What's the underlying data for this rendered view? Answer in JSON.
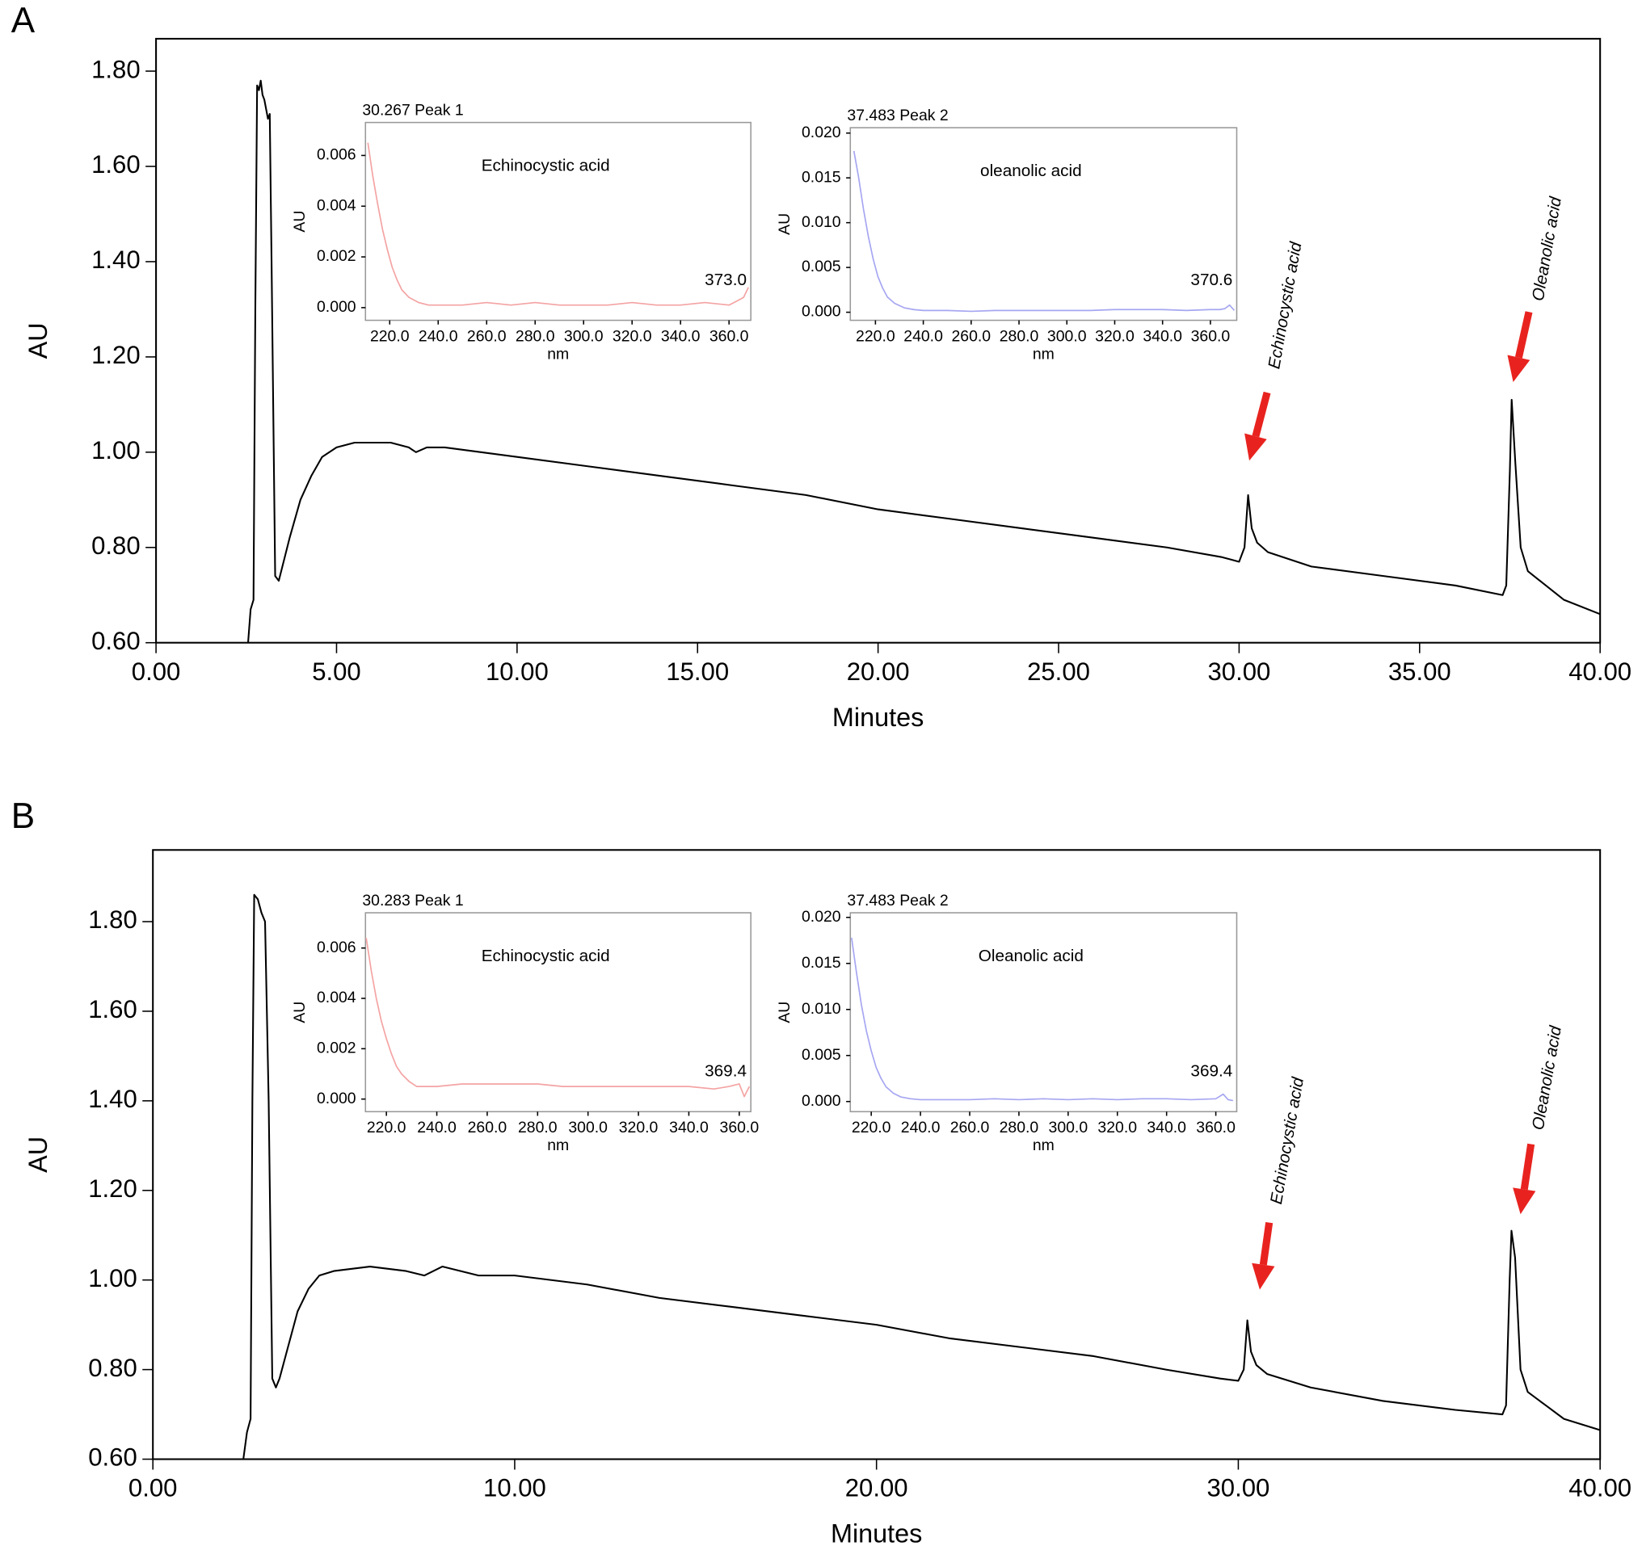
{
  "chart_data": [
    {
      "type": "line",
      "panel_label": "A",
      "xlabel": "Minutes",
      "ylabel": "AU",
      "color": "#000000",
      "xlim": [
        0,
        40
      ],
      "ylim": [
        0.6,
        1.868
      ],
      "xticks": [
        {
          "value": 0,
          "label": "0.00"
        },
        {
          "value": 5,
          "label": "5.00"
        },
        {
          "value": 10,
          "label": "10.00"
        },
        {
          "value": 15,
          "label": "15.00"
        },
        {
          "value": 20,
          "label": "20.00"
        },
        {
          "value": 25,
          "label": "25.00"
        },
        {
          "value": 30,
          "label": "30.00"
        },
        {
          "value": 35,
          "label": "35.00"
        },
        {
          "value": 40,
          "label": "40.00"
        }
      ],
      "yticks": [
        {
          "value": 0.6,
          "label": "0.60"
        },
        {
          "value": 0.8,
          "label": "0.80"
        },
        {
          "value": 1.0,
          "label": "1.00"
        },
        {
          "value": 1.2,
          "label": "1.20"
        },
        {
          "value": 1.4,
          "label": "1.40"
        },
        {
          "value": 1.6,
          "label": "1.60"
        },
        {
          "value": 1.8,
          "label": "1.80"
        }
      ],
      "x": [
        2.55,
        2.62,
        2.7,
        2.75,
        2.8,
        2.85,
        2.9,
        2.95,
        3.0,
        3.05,
        3.1,
        3.15,
        3.2,
        3.3,
        3.4,
        3.5,
        3.7,
        4.0,
        4.3,
        4.6,
        5.0,
        5.5,
        6.0,
        6.5,
        7.0,
        7.2,
        7.5,
        8.0,
        9.0,
        10.0,
        12.0,
        14.0,
        16.0,
        18.0,
        20.0,
        22.0,
        24.0,
        26.0,
        28.0,
        29.5,
        30.0,
        30.15,
        30.25,
        30.35,
        30.5,
        30.8,
        32.0,
        34.0,
        36.0,
        37.3,
        37.4,
        37.5,
        37.55,
        37.65,
        37.8,
        38.0,
        38.5,
        39.0,
        40.0
      ],
      "values": [
        0.6,
        0.67,
        0.69,
        1.3,
        1.77,
        1.76,
        1.78,
        1.75,
        1.74,
        1.72,
        1.7,
        1.71,
        1.4,
        0.74,
        0.73,
        0.76,
        0.82,
        0.9,
        0.95,
        0.99,
        1.01,
        1.02,
        1.02,
        1.02,
        1.01,
        1.0,
        1.01,
        1.01,
        1.0,
        0.99,
        0.97,
        0.95,
        0.93,
        0.91,
        0.88,
        0.86,
        0.84,
        0.82,
        0.8,
        0.78,
        0.77,
        0.8,
        0.91,
        0.84,
        0.81,
        0.79,
        0.76,
        0.74,
        0.72,
        0.7,
        0.72,
        0.96,
        1.11,
        0.98,
        0.8,
        0.75,
        0.72,
        0.69,
        0.66
      ],
      "annotations": [
        "Echinocystic acid",
        "Oleanolic acid"
      ],
      "annotation_color": "#e8231f"
    },
    {
      "type": "inset",
      "title": "30.267 Peak 1",
      "label": "Echinocystic acid",
      "xlabel": "nm",
      "ylabel": "AU",
      "color": "#f4a3a3",
      "label_color": "#e85a5a",
      "peak_label": "373.0",
      "xlim": [
        210,
        369
      ],
      "ylim": [
        -0.0005,
        0.0073
      ],
      "xticks": [
        {
          "value": 220,
          "label": "220.0"
        },
        {
          "value": 240,
          "label": "240.0"
        },
        {
          "value": 260,
          "label": "260.0"
        },
        {
          "value": 280,
          "label": "280.0"
        },
        {
          "value": 300,
          "label": "300.0"
        },
        {
          "value": 320,
          "label": "320.0"
        },
        {
          "value": 340,
          "label": "340.0"
        },
        {
          "value": 360,
          "label": "360.0"
        }
      ],
      "yticks": [
        {
          "value": 0,
          "label": "0.000"
        },
        {
          "value": 0.002,
          "label": "0.002"
        },
        {
          "value": 0.004,
          "label": "0.004"
        },
        {
          "value": 0.006,
          "label": "0.006"
        }
      ],
      "x": [
        211,
        213,
        215,
        217,
        219,
        221,
        223,
        225,
        228,
        232,
        236,
        240,
        250,
        260,
        270,
        280,
        290,
        300,
        310,
        320,
        330,
        340,
        350,
        360,
        364,
        366,
        368
      ],
      "values": [
        0.0065,
        0.0052,
        0.0041,
        0.0031,
        0.0023,
        0.0016,
        0.0011,
        0.0007,
        0.0004,
        0.0002,
        0.0001,
        0.0001,
        0.0001,
        0.0002,
        0.0001,
        0.0002,
        0.0001,
        0.0001,
        0.0001,
        0.0002,
        0.0001,
        0.0001,
        0.0002,
        0.0001,
        0.0003,
        0.0004,
        0.0008
      ]
    },
    {
      "type": "inset",
      "title": "37.483 Peak 2",
      "label": "oleanolic acid",
      "xlabel": "nm",
      "ylabel": "AU",
      "color": "#a6a6f2",
      "label_color": "#8c8ce6",
      "peak_label": "370.6",
      "xlim": [
        209.5,
        371
      ],
      "ylim": [
        -0.0009,
        0.0206
      ],
      "xticks": [
        {
          "value": 220,
          "label": "220.0"
        },
        {
          "value": 240,
          "label": "240.0"
        },
        {
          "value": 260,
          "label": "260.0"
        },
        {
          "value": 280,
          "label": "280.0"
        },
        {
          "value": 300,
          "label": "300.0"
        },
        {
          "value": 320,
          "label": "320.0"
        },
        {
          "value": 340,
          "label": "340.0"
        },
        {
          "value": 360,
          "label": "360.0"
        }
      ],
      "yticks": [
        {
          "value": 0,
          "label": "0.000"
        },
        {
          "value": 0.005,
          "label": "0.005"
        },
        {
          "value": 0.01,
          "label": "0.010"
        },
        {
          "value": 0.015,
          "label": "0.015"
        },
        {
          "value": 0.02,
          "label": "0.020"
        }
      ],
      "x": [
        211,
        213,
        215,
        217,
        219,
        221,
        223,
        225,
        228,
        232,
        236,
        240,
        250,
        260,
        270,
        280,
        290,
        300,
        310,
        320,
        330,
        340,
        350,
        360,
        364,
        366,
        368,
        370
      ],
      "values": [
        0.018,
        0.015,
        0.0115,
        0.0085,
        0.006,
        0.004,
        0.0027,
        0.0017,
        0.001,
        0.0005,
        0.0003,
        0.0002,
        0.0002,
        0.0001,
        0.0002,
        0.0002,
        0.0002,
        0.0002,
        0.0002,
        0.0003,
        0.0003,
        0.0003,
        0.0002,
        0.0003,
        0.0003,
        0.0004,
        0.0008,
        0.0002
      ]
    },
    {
      "type": "line",
      "panel_label": "B",
      "xlabel": "Minutes",
      "ylabel": "AU",
      "color": "#000000",
      "xlim": [
        0,
        40
      ],
      "ylim": [
        0.6,
        1.96
      ],
      "xticks": [
        {
          "value": 0,
          "label": "0.00"
        },
        {
          "value": 10,
          "label": "10.00"
        },
        {
          "value": 20,
          "label": "20.00"
        },
        {
          "value": 30,
          "label": "30.00"
        },
        {
          "value": 40,
          "label": "40.00"
        }
      ],
      "yticks": [
        {
          "value": 0.6,
          "label": "0.60"
        },
        {
          "value": 0.8,
          "label": "0.80"
        },
        {
          "value": 1.0,
          "label": "1.00"
        },
        {
          "value": 1.2,
          "label": "1.20"
        },
        {
          "value": 1.4,
          "label": "1.40"
        },
        {
          "value": 1.6,
          "label": "1.60"
        },
        {
          "value": 1.8,
          "label": "1.80"
        }
      ],
      "x": [
        2.5,
        2.6,
        2.7,
        2.75,
        2.8,
        2.9,
        3.0,
        3.1,
        3.2,
        3.3,
        3.4,
        3.5,
        3.7,
        4.0,
        4.3,
        4.6,
        5.0,
        6.0,
        7.0,
        7.5,
        8.0,
        9.0,
        10.0,
        12.0,
        14.0,
        16.0,
        18.0,
        20.0,
        22.0,
        24.0,
        26.0,
        28.0,
        29.5,
        30.0,
        30.15,
        30.25,
        30.35,
        30.5,
        30.8,
        32.0,
        34.0,
        36.0,
        37.3,
        37.4,
        37.5,
        37.55,
        37.65,
        37.8,
        38.0,
        38.5,
        39.0,
        40.0
      ],
      "values": [
        0.6,
        0.66,
        0.69,
        1.4,
        1.86,
        1.85,
        1.82,
        1.8,
        1.4,
        0.78,
        0.76,
        0.78,
        0.84,
        0.93,
        0.98,
        1.01,
        1.02,
        1.03,
        1.02,
        1.01,
        1.03,
        1.01,
        1.01,
        0.99,
        0.96,
        0.94,
        0.92,
        0.9,
        0.87,
        0.85,
        0.83,
        0.8,
        0.78,
        0.775,
        0.8,
        0.91,
        0.84,
        0.81,
        0.79,
        0.76,
        0.73,
        0.71,
        0.7,
        0.72,
        1.0,
        1.11,
        1.05,
        0.8,
        0.75,
        0.72,
        0.69,
        0.665
      ],
      "annotations": [
        "Echinocystic acid",
        "Oleanolic acid"
      ],
      "annotation_color": "#e8231f"
    },
    {
      "type": "inset",
      "title": "30.283 Peak 1",
      "label": "Echinocystic acid",
      "xlabel": "nm",
      "ylabel": "AU",
      "color": "#f4a3a3",
      "label_color": "#e85a5a",
      "peak_label": "369.4",
      "xlim": [
        211.7,
        364.6
      ],
      "ylim": [
        -0.0005,
        0.0074
      ],
      "xticks": [
        {
          "value": 220,
          "label": "220.0"
        },
        {
          "value": 240,
          "label": "240.0"
        },
        {
          "value": 260,
          "label": "260.0"
        },
        {
          "value": 280,
          "label": "280.0"
        },
        {
          "value": 300,
          "label": "300.0"
        },
        {
          "value": 320,
          "label": "320.0"
        },
        {
          "value": 340,
          "label": "340.0"
        },
        {
          "value": 360,
          "label": "360.0"
        }
      ],
      "yticks": [
        {
          "value": 0,
          "label": "0.000"
        },
        {
          "value": 0.002,
          "label": "0.002"
        },
        {
          "value": 0.004,
          "label": "0.004"
        },
        {
          "value": 0.006,
          "label": "0.006"
        }
      ],
      "x": [
        212,
        214,
        216,
        218,
        220,
        222,
        224,
        226,
        229,
        232,
        236,
        240,
        250,
        260,
        270,
        280,
        290,
        300,
        310,
        320,
        330,
        340,
        350,
        356,
        360,
        362,
        364
      ],
      "values": [
        0.0064,
        0.0051,
        0.004,
        0.0031,
        0.0024,
        0.0018,
        0.0013,
        0.001,
        0.0007,
        0.0005,
        0.0005,
        0.0005,
        0.0006,
        0.0006,
        0.0006,
        0.0006,
        0.0005,
        0.0005,
        0.0005,
        0.0005,
        0.0005,
        0.0005,
        0.0004,
        0.0005,
        0.0006,
        0.0001,
        0.0005
      ]
    },
    {
      "type": "inset",
      "title": "37.483 Peak 2",
      "label": "Oleanolic acid",
      "xlabel": "nm",
      "ylabel": "AU",
      "color": "#a6a6f2",
      "label_color": "#8c8ce6",
      "peak_label": "369.4",
      "xlim": [
        211.5,
        368.5
      ],
      "ylim": [
        -0.0011,
        0.0205
      ],
      "xticks": [
        {
          "value": 220,
          "label": "220.0"
        },
        {
          "value": 240,
          "label": "240.0"
        },
        {
          "value": 260,
          "label": "260.0"
        },
        {
          "value": 280,
          "label": "280.0"
        },
        {
          "value": 300,
          "label": "300.0"
        },
        {
          "value": 320,
          "label": "320.0"
        },
        {
          "value": 340,
          "label": "340.0"
        },
        {
          "value": 360,
          "label": "360.0"
        }
      ],
      "yticks": [
        {
          "value": 0,
          "label": "0.000"
        },
        {
          "value": 0.005,
          "label": "0.005"
        },
        {
          "value": 0.01,
          "label": "0.010"
        },
        {
          "value": 0.015,
          "label": "0.015"
        },
        {
          "value": 0.02,
          "label": "0.020"
        }
      ],
      "x": [
        212,
        214,
        216,
        218,
        220,
        222,
        224,
        226,
        229,
        232,
        236,
        240,
        250,
        260,
        270,
        280,
        290,
        300,
        310,
        320,
        330,
        340,
        350,
        360,
        363,
        365,
        367
      ],
      "values": [
        0.0178,
        0.014,
        0.0105,
        0.0077,
        0.0055,
        0.0037,
        0.0025,
        0.0016,
        0.0009,
        0.0005,
        0.0003,
        0.0002,
        0.0002,
        0.0002,
        0.0003,
        0.0002,
        0.0003,
        0.0002,
        0.0003,
        0.0002,
        0.0003,
        0.0003,
        0.0002,
        0.0003,
        0.0008,
        0.0002,
        0.0001
      ]
    }
  ]
}
